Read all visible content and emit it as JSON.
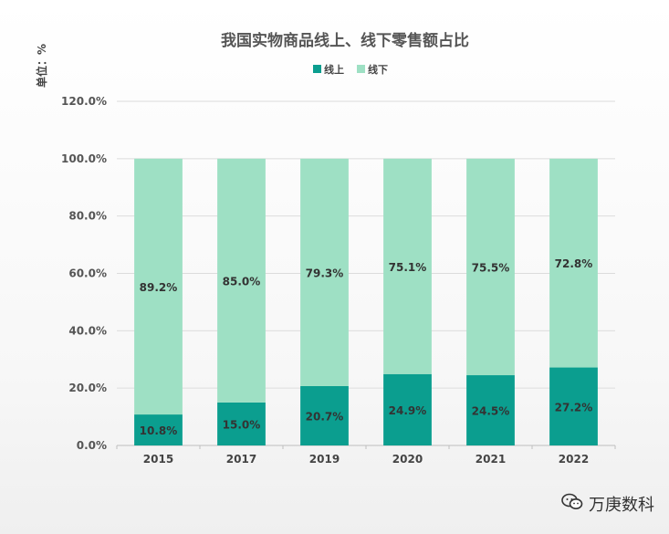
{
  "chart_data": {
    "type": "bar",
    "stacked": true,
    "title": "我国实物商品线上、线下零售额占比",
    "unit_label": "单位：%",
    "legend_position": "top",
    "categories": [
      "2015",
      "2017",
      "2019",
      "2020",
      "2021",
      "2022"
    ],
    "series": [
      {
        "name": "线上",
        "color": "#0b9e8f",
        "values": [
          10.8,
          15.0,
          20.7,
          24.9,
          24.5,
          27.2
        ],
        "labels": [
          "10.8%",
          "15.0%",
          "20.7%",
          "24.9%",
          "24.5%",
          "27.2%"
        ]
      },
      {
        "name": "线下",
        "color": "#9ee0c4",
        "values": [
          89.2,
          85.0,
          79.3,
          75.1,
          75.5,
          72.8
        ],
        "labels": [
          "89.2%",
          "85.0%",
          "79.3%",
          "75.1%",
          "75.5%",
          "72.8%"
        ]
      }
    ],
    "yticks": [
      "0.0%",
      "20.0%",
      "40.0%",
      "60.0%",
      "80.0%",
      "100.0%",
      "120.0%"
    ],
    "ylim": [
      0,
      120
    ],
    "grid": true
  },
  "watermark": {
    "text": "万庚数科",
    "icon": "wechat-icon"
  }
}
